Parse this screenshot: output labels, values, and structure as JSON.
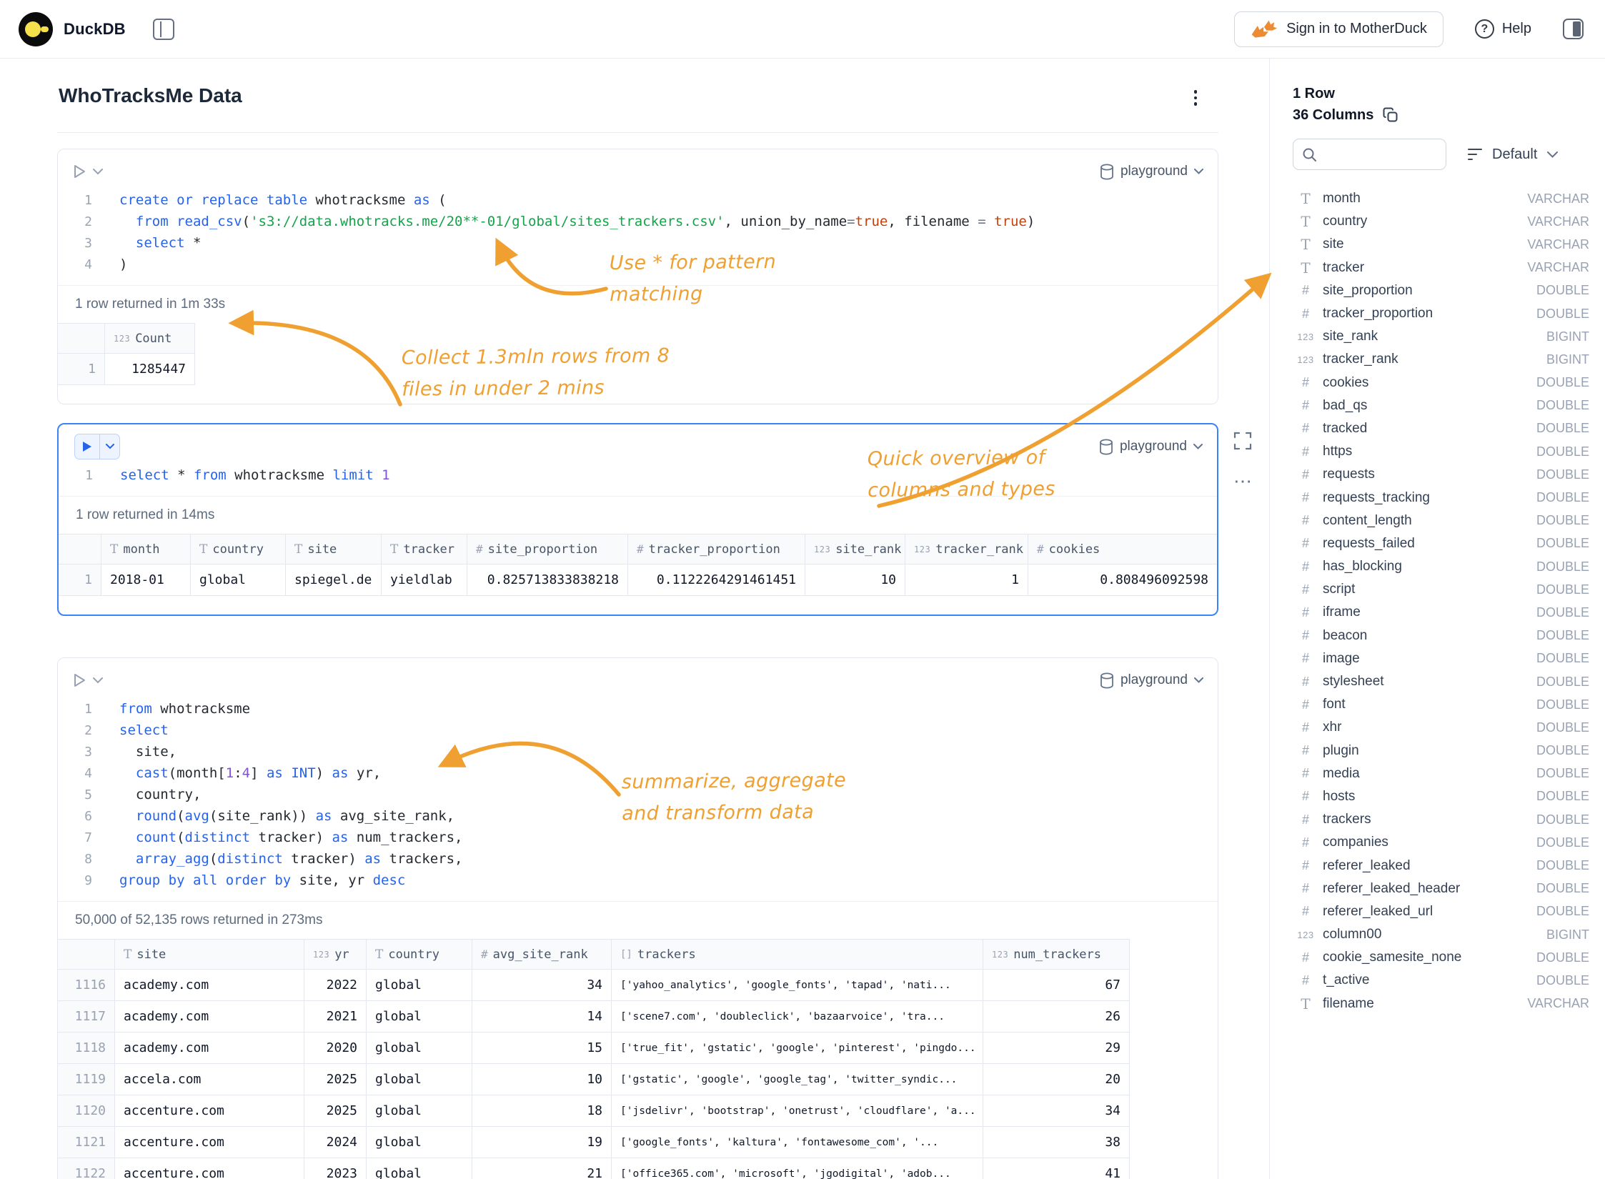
{
  "topbar": {
    "app_name": "DuckDB",
    "sign_in_label": "Sign in to MotherDuck",
    "help_label": "Help"
  },
  "page": {
    "title": "WhoTracksMe Data"
  },
  "colors": {
    "accent_orange": "#EFA030",
    "selected_cell_border": "#3C83F6",
    "keyword_blue": "#2563EB"
  },
  "cells": [
    {
      "source": "playground",
      "status": "1 row returned in 1m 33s",
      "code": [
        [
          {
            "c": "kw",
            "v": "create or replace table"
          },
          {
            "c": "pl",
            "v": " whotracksme "
          },
          {
            "c": "kw",
            "v": "as"
          },
          {
            "c": "pl",
            "v": " ("
          }
        ],
        [
          {
            "c": "pl",
            "v": "  "
          },
          {
            "c": "kw",
            "v": "from"
          },
          {
            "c": "pl",
            "v": " "
          },
          {
            "c": "kw",
            "v": "read_csv"
          },
          {
            "c": "pl",
            "v": "("
          },
          {
            "c": "str",
            "v": "'s3://data.whotracks.me/20**-01/global/sites_trackers.csv'"
          },
          {
            "c": "pl",
            "v": ", union_by_name"
          },
          {
            "c": "op",
            "v": "="
          },
          {
            "c": "bool",
            "v": "true"
          },
          {
            "c": "pl",
            "v": ", filename "
          },
          {
            "c": "op",
            "v": "="
          },
          {
            "c": "pl",
            "v": " "
          },
          {
            "c": "bool",
            "v": "true"
          },
          {
            "c": "pl",
            "v": ")"
          }
        ],
        [
          {
            "c": "pl",
            "v": "  "
          },
          {
            "c": "kw",
            "v": "select"
          },
          {
            "c": "pl",
            "v": " *"
          }
        ],
        [
          {
            "c": "pl",
            "v": ")"
          }
        ]
      ],
      "result": {
        "row_numbers": [
          "1"
        ],
        "columns": [
          {
            "kind": "bigint",
            "label": "Count"
          }
        ],
        "rows": [
          [
            "1285447"
          ]
        ]
      }
    },
    {
      "source": "playground",
      "status": "1 row returned in 14ms",
      "code": [
        [
          {
            "c": "kw",
            "v": "select"
          },
          {
            "c": "pl",
            "v": " * "
          },
          {
            "c": "kw",
            "v": "from"
          },
          {
            "c": "pl",
            "v": " whotracksme "
          },
          {
            "c": "kw",
            "v": "limit"
          },
          {
            "c": "pl",
            "v": " "
          },
          {
            "c": "num",
            "v": "1"
          }
        ]
      ],
      "result": {
        "row_numbers": [
          "1"
        ],
        "columns": [
          {
            "kind": "varchar",
            "label": "month"
          },
          {
            "kind": "varchar",
            "label": "country"
          },
          {
            "kind": "varchar",
            "label": "site"
          },
          {
            "kind": "varchar",
            "label": "tracker"
          },
          {
            "kind": "double",
            "label": "site_proportion"
          },
          {
            "kind": "double",
            "label": "tracker_proportion"
          },
          {
            "kind": "bigint",
            "label": "site_rank"
          },
          {
            "kind": "bigint",
            "label": "tracker_rank"
          },
          {
            "kind": "double",
            "label": "cookies"
          }
        ],
        "rows": [
          [
            "2018-01",
            "global",
            "spiegel.de",
            "yieldlab",
            "0.825713833838218",
            "0.1122264291461451",
            "10",
            "1",
            "0.808496092598"
          ]
        ]
      }
    },
    {
      "source": "playground",
      "status": "50,000 of 52,135 rows returned in 273ms",
      "code": [
        [
          {
            "c": "kw",
            "v": "from"
          },
          {
            "c": "pl",
            "v": " whotracksme"
          }
        ],
        [
          {
            "c": "kw",
            "v": "select"
          }
        ],
        [
          {
            "c": "pl",
            "v": "  site,"
          }
        ],
        [
          {
            "c": "pl",
            "v": "  "
          },
          {
            "c": "kw",
            "v": "cast"
          },
          {
            "c": "pl",
            "v": "(month["
          },
          {
            "c": "num",
            "v": "1"
          },
          {
            "c": "pl",
            "v": ":"
          },
          {
            "c": "num",
            "v": "4"
          },
          {
            "c": "pl",
            "v": "] "
          },
          {
            "c": "kw",
            "v": "as"
          },
          {
            "c": "pl",
            "v": " "
          },
          {
            "c": "kw",
            "v": "INT"
          },
          {
            "c": "pl",
            "v": ") "
          },
          {
            "c": "kw",
            "v": "as"
          },
          {
            "c": "pl",
            "v": " yr,"
          }
        ],
        [
          {
            "c": "pl",
            "v": "  country,"
          }
        ],
        [
          {
            "c": "pl",
            "v": "  "
          },
          {
            "c": "kw",
            "v": "round"
          },
          {
            "c": "pl",
            "v": "("
          },
          {
            "c": "kw",
            "v": "avg"
          },
          {
            "c": "pl",
            "v": "(site_rank)) "
          },
          {
            "c": "kw",
            "v": "as"
          },
          {
            "c": "pl",
            "v": " avg_site_rank,"
          }
        ],
        [
          {
            "c": "pl",
            "v": "  "
          },
          {
            "c": "kw",
            "v": "count"
          },
          {
            "c": "pl",
            "v": "("
          },
          {
            "c": "kw",
            "v": "distinct"
          },
          {
            "c": "pl",
            "v": " tracker) "
          },
          {
            "c": "kw",
            "v": "as"
          },
          {
            "c": "pl",
            "v": " num_trackers,"
          }
        ],
        [
          {
            "c": "pl",
            "v": "  "
          },
          {
            "c": "kw",
            "v": "array_agg"
          },
          {
            "c": "pl",
            "v": "("
          },
          {
            "c": "kw",
            "v": "distinct"
          },
          {
            "c": "pl",
            "v": " tracker) "
          },
          {
            "c": "kw",
            "v": "as"
          },
          {
            "c": "pl",
            "v": " trackers,"
          }
        ],
        [
          {
            "c": "kw",
            "v": "group by all order by"
          },
          {
            "c": "pl",
            "v": " site, yr "
          },
          {
            "c": "kw",
            "v": "desc"
          }
        ]
      ],
      "result": {
        "row_numbers": [
          "1116",
          "1117",
          "1118",
          "1119",
          "1120",
          "1121",
          "1122"
        ],
        "columns": [
          {
            "kind": "varchar",
            "label": "site"
          },
          {
            "kind": "bigint",
            "label": "yr"
          },
          {
            "kind": "varchar",
            "label": "country"
          },
          {
            "kind": "double",
            "label": "avg_site_rank"
          },
          {
            "kind": "array",
            "label": "trackers"
          },
          {
            "kind": "bigint",
            "label": "num_trackers"
          }
        ],
        "rows": [
          [
            "academy.com",
            "2022",
            "global",
            "34",
            "['yahoo_analytics', 'google_fonts', 'tapad', 'nati...",
            "67"
          ],
          [
            "academy.com",
            "2021",
            "global",
            "14",
            "['scene7.com', 'doubleclick', 'bazaarvoice', 'tra...",
            "26"
          ],
          [
            "academy.com",
            "2020",
            "global",
            "15",
            "['true_fit', 'gstatic', 'google', 'pinterest', 'pingdo...",
            "29"
          ],
          [
            "accela.com",
            "2025",
            "global",
            "10",
            "['gstatic', 'google', 'google_tag', 'twitter_syndic...",
            "20"
          ],
          [
            "accenture.com",
            "2025",
            "global",
            "18",
            "['jsdelivr', 'bootstrap', 'onetrust', 'cloudflare', 'a...",
            "34"
          ],
          [
            "accenture.com",
            "2024",
            "global",
            "19",
            "['google_fonts', 'kaltura', 'fontawesome_com', '...",
            "38"
          ],
          [
            "accenture.com",
            "2023",
            "global",
            "21",
            "['office365.com', 'microsoft', 'jgodigital', 'adob...",
            "41"
          ]
        ]
      }
    }
  ],
  "annotations": [
    {
      "lines": [
        "Use * for pattern",
        "matching"
      ]
    },
    {
      "lines": [
        "Collect 1.3mln rows from 8",
        "files in under 2 mins"
      ]
    },
    {
      "lines": [
        "Quick overview of",
        "columns and types"
      ]
    },
    {
      "lines": [
        "summarize, aggregate",
        "and transform data"
      ]
    }
  ],
  "sidebar": {
    "row_count_label": "1 Row",
    "column_count_label": "36 Columns",
    "search_placeholder": "",
    "sort_label": "Default",
    "columns": [
      {
        "name": "month",
        "type": "VARCHAR",
        "kind": "varchar"
      },
      {
        "name": "country",
        "type": "VARCHAR",
        "kind": "varchar"
      },
      {
        "name": "site",
        "type": "VARCHAR",
        "kind": "varchar"
      },
      {
        "name": "tracker",
        "type": "VARCHAR",
        "kind": "varchar"
      },
      {
        "name": "site_proportion",
        "type": "DOUBLE",
        "kind": "double"
      },
      {
        "name": "tracker_proportion",
        "type": "DOUBLE",
        "kind": "double"
      },
      {
        "name": "site_rank",
        "type": "BIGINT",
        "kind": "bigint"
      },
      {
        "name": "tracker_rank",
        "type": "BIGINT",
        "kind": "bigint"
      },
      {
        "name": "cookies",
        "type": "DOUBLE",
        "kind": "double"
      },
      {
        "name": "bad_qs",
        "type": "DOUBLE",
        "kind": "double"
      },
      {
        "name": "tracked",
        "type": "DOUBLE",
        "kind": "double"
      },
      {
        "name": "https",
        "type": "DOUBLE",
        "kind": "double"
      },
      {
        "name": "requests",
        "type": "DOUBLE",
        "kind": "double"
      },
      {
        "name": "requests_tracking",
        "type": "DOUBLE",
        "kind": "double"
      },
      {
        "name": "content_length",
        "type": "DOUBLE",
        "kind": "double"
      },
      {
        "name": "requests_failed",
        "type": "DOUBLE",
        "kind": "double"
      },
      {
        "name": "has_blocking",
        "type": "DOUBLE",
        "kind": "double"
      },
      {
        "name": "script",
        "type": "DOUBLE",
        "kind": "double"
      },
      {
        "name": "iframe",
        "type": "DOUBLE",
        "kind": "double"
      },
      {
        "name": "beacon",
        "type": "DOUBLE",
        "kind": "double"
      },
      {
        "name": "image",
        "type": "DOUBLE",
        "kind": "double"
      },
      {
        "name": "stylesheet",
        "type": "DOUBLE",
        "kind": "double"
      },
      {
        "name": "font",
        "type": "DOUBLE",
        "kind": "double"
      },
      {
        "name": "xhr",
        "type": "DOUBLE",
        "kind": "double"
      },
      {
        "name": "plugin",
        "type": "DOUBLE",
        "kind": "double"
      },
      {
        "name": "media",
        "type": "DOUBLE",
        "kind": "double"
      },
      {
        "name": "hosts",
        "type": "DOUBLE",
        "kind": "double"
      },
      {
        "name": "trackers",
        "type": "DOUBLE",
        "kind": "double"
      },
      {
        "name": "companies",
        "type": "DOUBLE",
        "kind": "double"
      },
      {
        "name": "referer_leaked",
        "type": "DOUBLE",
        "kind": "double"
      },
      {
        "name": "referer_leaked_header",
        "type": "DOUBLE",
        "kind": "double"
      },
      {
        "name": "referer_leaked_url",
        "type": "DOUBLE",
        "kind": "double"
      },
      {
        "name": "column00",
        "type": "BIGINT",
        "kind": "bigint"
      },
      {
        "name": "cookie_samesite_none",
        "type": "DOUBLE",
        "kind": "double"
      },
      {
        "name": "t_active",
        "type": "DOUBLE",
        "kind": "double"
      },
      {
        "name": "filename",
        "type": "VARCHAR",
        "kind": "varchar"
      }
    ]
  }
}
